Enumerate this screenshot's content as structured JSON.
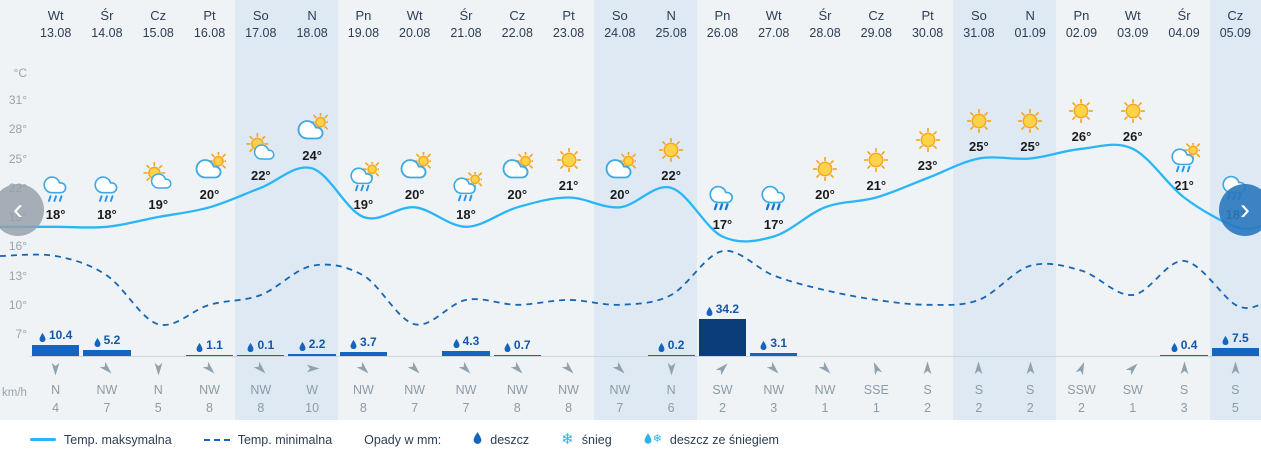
{
  "colors": {
    "max_line": "#29b6f6",
    "min_line": "#1767b3",
    "precip_bar": "#1565c0",
    "precip_bar_heavy": "#0a3d7a",
    "weekend_bg": "#dfe9f3",
    "bg": "#f0f3f6",
    "nav_next": "#2c7abf",
    "wind_gray": "#8fa2ae"
  },
  "axis": {
    "unit_top": "°C",
    "ticks": [
      "31°",
      "28°",
      "25°",
      "22°",
      "19°",
      "16°",
      "13°",
      "10°",
      "7°"
    ],
    "unit_bottom": "km/h"
  },
  "nav": {
    "prev": "‹",
    "next": "›"
  },
  "legend": {
    "max_label": "Temp. maksymalna",
    "min_label": "Temp. minimalna",
    "precip_label": "Opady w mm:",
    "rain_label": "deszcz",
    "snow_label": "śnieg",
    "rain_snow_label": "deszcz ze śniegiem"
  },
  "chart_data": {
    "type": "line",
    "ylabel": "°C",
    "ylim": [
      7,
      31
    ],
    "wind_unit": "km/h",
    "columns": [
      {
        "day": "Wt",
        "date": "13.08",
        "icon": "rain",
        "tmax": 18,
        "tmin": 15,
        "precip": 10.4,
        "wind_dir": "N",
        "wind_speed": 4,
        "weekend": false
      },
      {
        "day": "Śr",
        "date": "14.08",
        "icon": "rain",
        "tmax": 18,
        "tmin": 13,
        "precip": 5.2,
        "wind_dir": "NW",
        "wind_speed": 7,
        "weekend": false
      },
      {
        "day": "Cz",
        "date": "15.08",
        "icon": "sun-cloud",
        "tmax": 19,
        "tmin": 8,
        "precip": null,
        "wind_dir": "N",
        "wind_speed": 5,
        "weekend": false
      },
      {
        "day": "Pt",
        "date": "16.08",
        "icon": "cloud-sun",
        "tmax": 20,
        "tmin": 10,
        "precip": 1.1,
        "wind_dir": "NW",
        "wind_speed": 8,
        "weekend": false
      },
      {
        "day": "So",
        "date": "17.08",
        "icon": "sun-cloud",
        "tmax": 22,
        "tmin": 11,
        "precip": 0.1,
        "wind_dir": "NW",
        "wind_speed": 8,
        "weekend": true
      },
      {
        "day": "N",
        "date": "18.08",
        "icon": "cloud-sun",
        "tmax": 24,
        "tmin": 14,
        "precip": 2.2,
        "wind_dir": "W",
        "wind_speed": 10,
        "weekend": true
      },
      {
        "day": "Pn",
        "date": "19.08",
        "icon": "rain-sun",
        "tmax": 19,
        "tmin": 13,
        "precip": 3.7,
        "wind_dir": "NW",
        "wind_speed": 8,
        "weekend": false
      },
      {
        "day": "Wt",
        "date": "20.08",
        "icon": "cloud-sun",
        "tmax": 20,
        "tmin": 8,
        "precip": null,
        "wind_dir": "NW",
        "wind_speed": 7,
        "weekend": false
      },
      {
        "day": "Śr",
        "date": "21.08",
        "icon": "rain-sun",
        "tmax": 18,
        "tmin": 10.5,
        "precip": 4.3,
        "wind_dir": "NW",
        "wind_speed": 7,
        "weekend": false
      },
      {
        "day": "Cz",
        "date": "22.08",
        "icon": "cloud-sun",
        "tmax": 20,
        "tmin": 10,
        "precip": 0.7,
        "wind_dir": "NW",
        "wind_speed": 8,
        "weekend": false
      },
      {
        "day": "Pt",
        "date": "23.08",
        "icon": "sun",
        "tmax": 21,
        "tmin": 10.5,
        "precip": null,
        "wind_dir": "NW",
        "wind_speed": 8,
        "weekend": false
      },
      {
        "day": "So",
        "date": "24.08",
        "icon": "cloud-sun",
        "tmax": 20,
        "tmin": 10,
        "precip": null,
        "wind_dir": "NW",
        "wind_speed": 7,
        "weekend": true
      },
      {
        "day": "N",
        "date": "25.08",
        "icon": "sun",
        "tmax": 22,
        "tmin": 11,
        "precip": 0.2,
        "wind_dir": "N",
        "wind_speed": 6,
        "weekend": true
      },
      {
        "day": "Pn",
        "date": "26.08",
        "icon": "showers",
        "tmax": 17,
        "tmin": 15.5,
        "precip": 34.2,
        "wind_dir": "SW",
        "wind_speed": 2,
        "weekend": false
      },
      {
        "day": "Wt",
        "date": "27.08",
        "icon": "showers",
        "tmax": 17,
        "tmin": 13,
        "precip": 3.1,
        "wind_dir": "NW",
        "wind_speed": 3,
        "weekend": false
      },
      {
        "day": "Śr",
        "date": "28.08",
        "icon": "sun",
        "tmax": 20,
        "tmin": 11.5,
        "precip": null,
        "wind_dir": "NW",
        "wind_speed": 1,
        "weekend": false
      },
      {
        "day": "Cz",
        "date": "29.08",
        "icon": "sun",
        "tmax": 21,
        "tmin": 10.5,
        "precip": null,
        "wind_dir": "SSE",
        "wind_speed": 1,
        "weekend": false
      },
      {
        "day": "Pt",
        "date": "30.08",
        "icon": "sun",
        "tmax": 23,
        "tmin": 10,
        "precip": null,
        "wind_dir": "S",
        "wind_speed": 2,
        "weekend": false
      },
      {
        "day": "So",
        "date": "31.08",
        "icon": "sun",
        "tmax": 25,
        "tmin": 10.5,
        "precip": null,
        "wind_dir": "S",
        "wind_speed": 2,
        "weekend": true
      },
      {
        "day": "N",
        "date": "01.09",
        "icon": "sun",
        "tmax": 25,
        "tmin": 14,
        "precip": null,
        "wind_dir": "S",
        "wind_speed": 2,
        "weekend": true
      },
      {
        "day": "Pn",
        "date": "02.09",
        "icon": "sun",
        "tmax": 26,
        "tmin": 13.5,
        "precip": null,
        "wind_dir": "SSW",
        "wind_speed": 2,
        "weekend": false
      },
      {
        "day": "Wt",
        "date": "03.09",
        "icon": "sun",
        "tmax": 26,
        "tmin": 11,
        "precip": null,
        "wind_dir": "SW",
        "wind_speed": 1,
        "weekend": false
      },
      {
        "day": "Śr",
        "date": "04.09",
        "icon": "rain-sun",
        "tmax": 21,
        "tmin": 14.5,
        "precip": 0.4,
        "wind_dir": "S",
        "wind_speed": 3,
        "weekend": false
      },
      {
        "day": "Cz",
        "date": "05.09",
        "icon": "showers",
        "tmax": 18,
        "tmin": 10,
        "precip": 7.5,
        "wind_dir": "S",
        "wind_speed": 5,
        "weekend": true
      }
    ]
  }
}
